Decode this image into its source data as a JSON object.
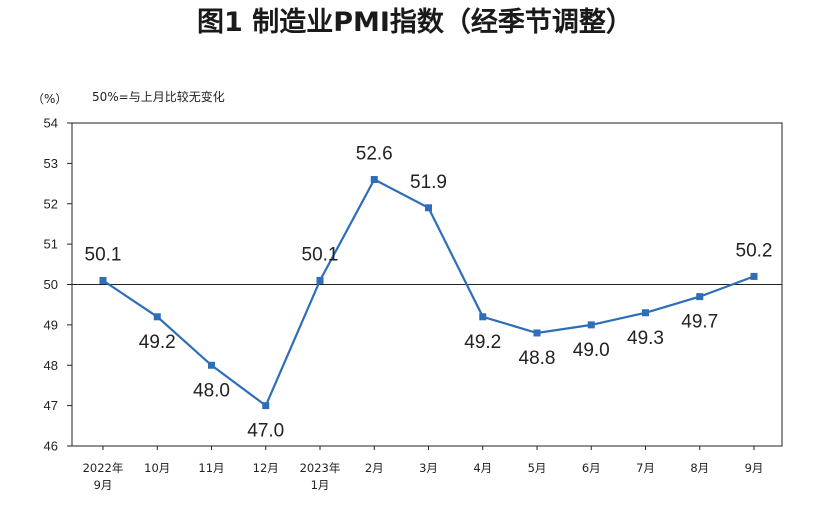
{
  "chart_data": {
    "type": "line",
    "title": "图1 制造业PMI指数（经季节调整）",
    "unit_label": "（%）",
    "note": "50%=与上月比较无变化",
    "ylim": [
      46,
      54
    ],
    "yticks": [
      46,
      47,
      48,
      49,
      50,
      51,
      52,
      53,
      54
    ],
    "reference_line": 50,
    "grid": false,
    "categories": [
      [
        "2022年",
        "9月"
      ],
      [
        "10月"
      ],
      [
        "11月"
      ],
      [
        "12月"
      ],
      [
        "2023年",
        "1月"
      ],
      [
        "2月"
      ],
      [
        "3月"
      ],
      [
        "4月"
      ],
      [
        "5月"
      ],
      [
        "6月"
      ],
      [
        "7月"
      ],
      [
        "8月"
      ],
      [
        "9月"
      ]
    ],
    "series": [
      {
        "values": [
          50.1,
          49.2,
          48.0,
          47.0,
          50.1,
          52.6,
          51.9,
          49.2,
          48.8,
          49.0,
          49.3,
          49.7,
          50.2
        ],
        "data_labels": [
          "50.1",
          "49.2",
          "48.0",
          "47.0",
          "50.1",
          "52.6",
          "51.9",
          "49.2",
          "48.8",
          "49.0",
          "49.3",
          "49.7",
          "50.2"
        ],
        "color": "#2e6db8"
      }
    ]
  }
}
